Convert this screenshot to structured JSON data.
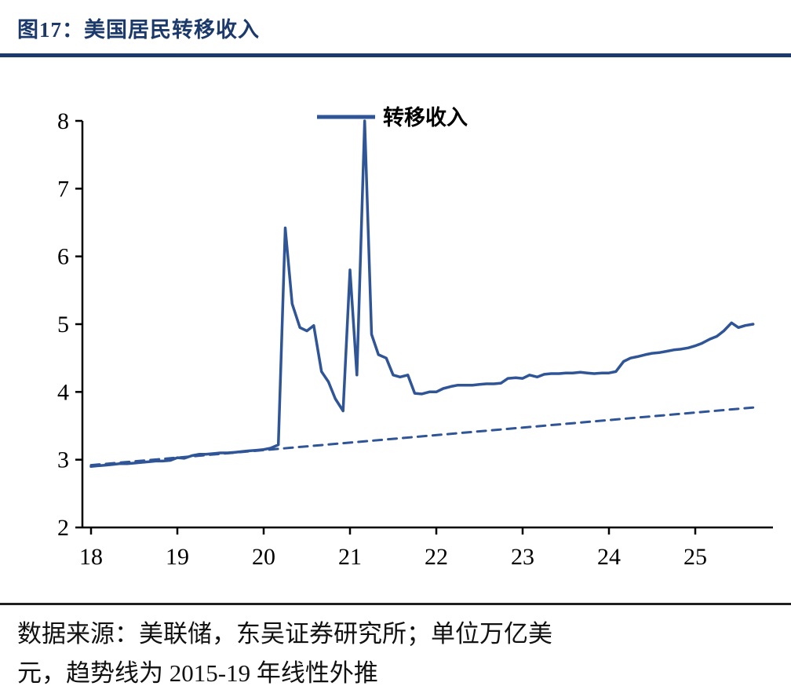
{
  "page": {
    "title": "图17：美国居民转移收入",
    "source_note": {
      "line1": "数据来源：美联储，东吴证券研究所；单位万亿美",
      "line2": "元，趋势线为 2015-19 年线性外推"
    },
    "colors": {
      "accent": "#1b3a6b",
      "line": "#2f5597",
      "axis": "#000000"
    }
  },
  "chart_data": {
    "type": "line",
    "title": "美国居民转移收入",
    "unit": "万亿美元",
    "legend_label": "转移收入",
    "legend_position": "top-center",
    "grid": false,
    "xlim": [
      17.9,
      25.9
    ],
    "ylim": [
      2,
      8
    ],
    "x_ticks": [
      18,
      19,
      20,
      21,
      22,
      23,
      24,
      25
    ],
    "y_ticks": [
      2,
      3,
      4,
      5,
      6,
      7,
      8
    ],
    "series": [
      {
        "id": "transfer-income",
        "name": "转移收入",
        "style": "solid",
        "color": "#2f5597",
        "x": [
          18,
          18.08,
          18.17,
          18.25,
          18.33,
          18.42,
          18.5,
          18.58,
          18.67,
          18.75,
          18.83,
          18.92,
          19,
          19.08,
          19.17,
          19.25,
          19.33,
          19.42,
          19.5,
          19.58,
          19.67,
          19.75,
          19.83,
          19.92,
          20,
          20.08,
          20.17,
          20.25,
          20.33,
          20.42,
          20.5,
          20.58,
          20.67,
          20.75,
          20.83,
          20.92,
          21,
          21.08,
          21.17,
          21.25,
          21.33,
          21.42,
          21.5,
          21.58,
          21.67,
          21.75,
          21.83,
          21.92,
          22,
          22.08,
          22.17,
          22.25,
          22.33,
          22.42,
          22.5,
          22.58,
          22.67,
          22.75,
          22.83,
          22.92,
          23,
          23.08,
          23.17,
          23.25,
          23.33,
          23.42,
          23.5,
          23.58,
          23.67,
          23.75,
          23.83,
          23.92,
          24,
          24.08,
          24.17,
          24.25,
          24.33,
          24.42,
          24.5,
          24.58,
          24.67,
          24.75,
          24.83,
          24.92,
          25,
          25.08,
          25.17,
          25.25,
          25.33,
          25.42,
          25.5,
          25.58,
          25.67
        ],
        "y": [
          2.9,
          2.91,
          2.92,
          2.93,
          2.94,
          2.94,
          2.95,
          2.96,
          2.97,
          2.98,
          2.98,
          2.99,
          3.03,
          3.02,
          3.06,
          3.08,
          3.08,
          3.09,
          3.1,
          3.1,
          3.11,
          3.12,
          3.13,
          3.14,
          3.15,
          3.17,
          3.22,
          6.42,
          5.3,
          4.95,
          4.9,
          4.98,
          4.3,
          4.15,
          3.9,
          3.72,
          5.8,
          4.25,
          8,
          4.85,
          4.55,
          4.5,
          4.25,
          4.22,
          4.25,
          3.98,
          3.97,
          4,
          4,
          4.05,
          4.08,
          4.1,
          4.1,
          4.1,
          4.11,
          4.12,
          4.12,
          4.13,
          4.2,
          4.21,
          4.2,
          4.25,
          4.22,
          4.26,
          4.27,
          4.27,
          4.28,
          4.28,
          4.29,
          4.28,
          4.27,
          4.28,
          4.28,
          4.3,
          4.45,
          4.5,
          4.52,
          4.55,
          4.57,
          4.58,
          4.6,
          4.62,
          4.63,
          4.65,
          4.68,
          4.72,
          4.78,
          4.82,
          4.9,
          5.02,
          4.95,
          4.98,
          5
        ]
      },
      {
        "id": "trend-line",
        "name": "趋势线（2015-19 年线性外推）",
        "style": "dashed",
        "color": "#2f5597",
        "x": [
          18,
          25.67
        ],
        "y": [
          2.92,
          3.77
        ]
      }
    ]
  }
}
